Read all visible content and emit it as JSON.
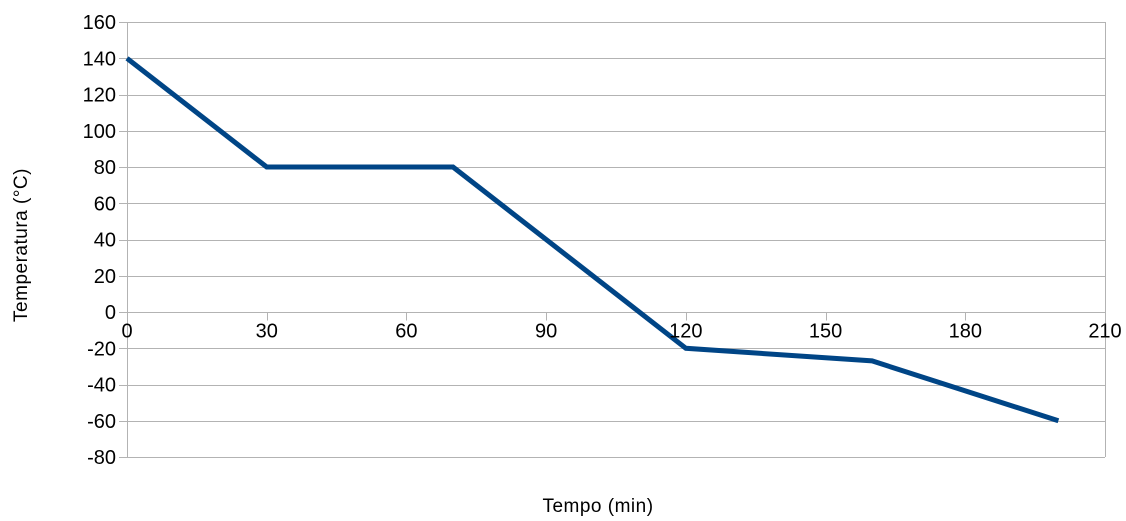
{
  "chart_data": {
    "type": "line",
    "title": "",
    "xlabel": "Tempo (min)",
    "ylabel": "Temperatura (°C)",
    "xlim": [
      0,
      210
    ],
    "ylim": [
      -80,
      160
    ],
    "xticks": [
      0,
      30,
      60,
      90,
      120,
      150,
      180,
      210
    ],
    "yticks": [
      160,
      140,
      120,
      100,
      80,
      60,
      40,
      20,
      0,
      -20,
      -40,
      -60,
      -80
    ],
    "xtick_labels": [
      "0",
      "30",
      "60",
      "90",
      "120",
      "150",
      "180",
      "210"
    ],
    "ytick_labels": [
      "160",
      "140",
      "120",
      "100",
      "80",
      "60",
      "40",
      "20",
      "0",
      "-20",
      "-40",
      "-60",
      "-80"
    ],
    "grid": true,
    "legend": "none",
    "series": [
      {
        "color": "#004586",
        "x": [
          0,
          30,
          70,
          120,
          160,
          200
        ],
        "y": [
          140,
          80,
          80,
          -20,
          -27,
          -60
        ]
      }
    ]
  }
}
